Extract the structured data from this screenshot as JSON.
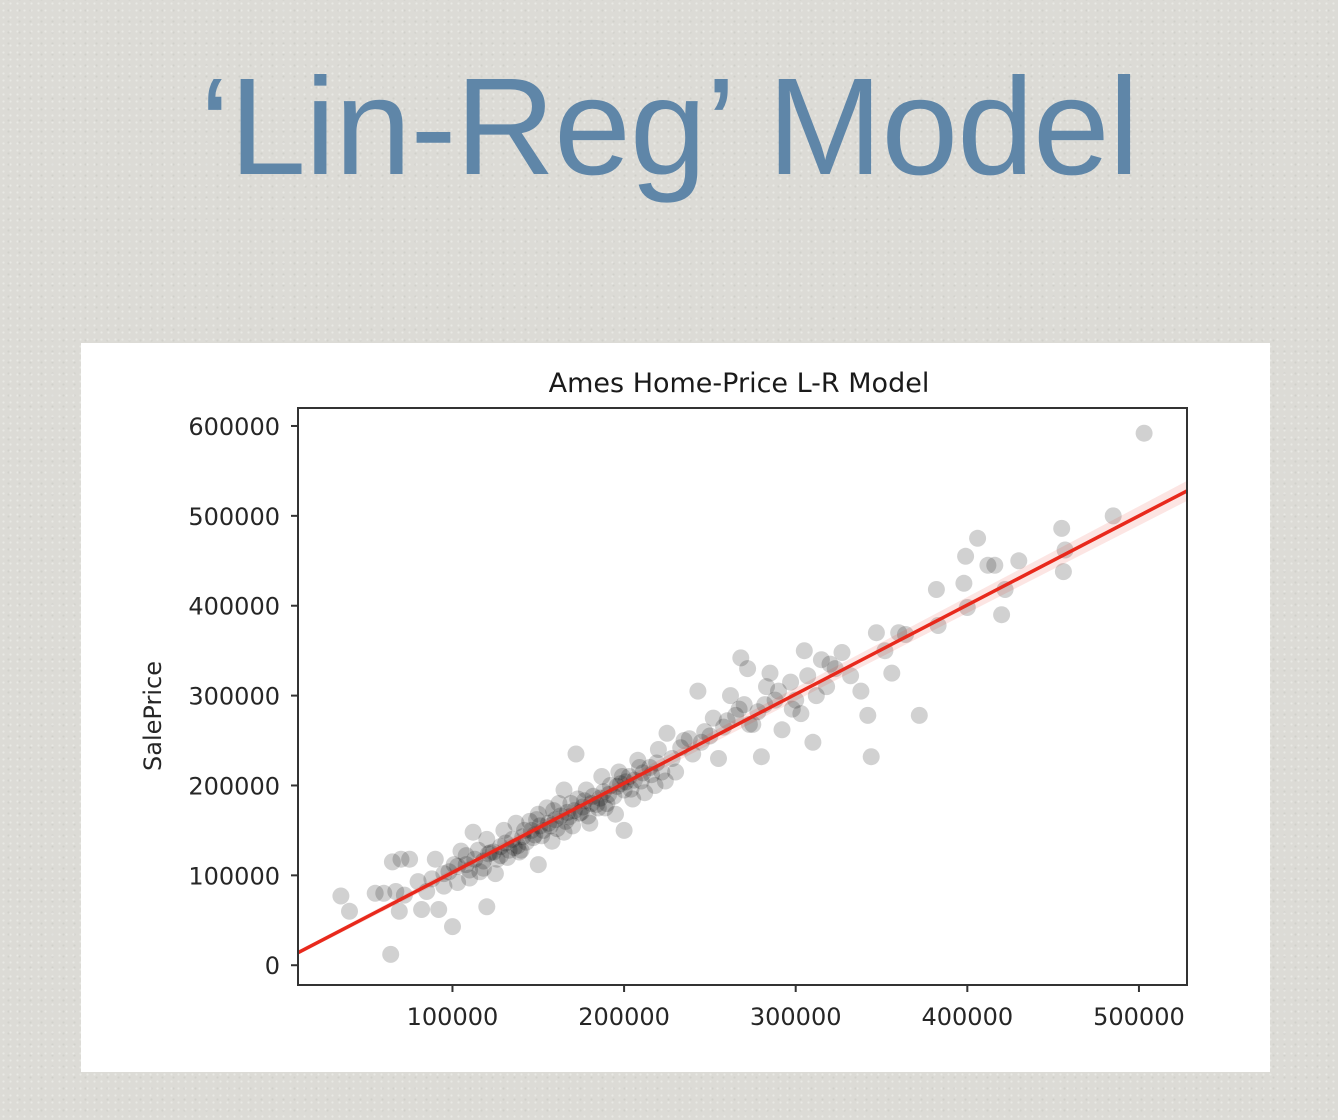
{
  "slide": {
    "title": "‘Lin-Reg’ Model"
  },
  "chart_data": {
    "type": "scatter",
    "title": "Ames Home-Price L-R Model",
    "xlabel": "",
    "ylabel": "SalePrice",
    "xlim": [
      10000,
      528000
    ],
    "ylim": [
      -22000,
      620000
    ],
    "xticks": [
      100000,
      200000,
      300000,
      400000,
      500000
    ],
    "yticks": [
      0,
      100000,
      200000,
      300000,
      400000,
      500000,
      600000
    ],
    "xtick_labels": [
      "100000",
      "200000",
      "300000",
      "400000",
      "500000"
    ],
    "ytick_labels": [
      "0",
      "100000",
      "200000",
      "300000",
      "400000",
      "500000",
      "600000"
    ],
    "grid": false,
    "point_color": "#000000",
    "point_alpha": 0.18,
    "points": [
      [
        35000,
        77000
      ],
      [
        40000,
        60000
      ],
      [
        55000,
        80000
      ],
      [
        60000,
        80000
      ],
      [
        64000,
        12000
      ],
      [
        65000,
        115000
      ],
      [
        67000,
        82000
      ],
      [
        69000,
        60000
      ],
      [
        70000,
        118000
      ],
      [
        72000,
        78000
      ],
      [
        75000,
        118000
      ],
      [
        80000,
        93000
      ],
      [
        82000,
        62000
      ],
      [
        85000,
        82000
      ],
      [
        88000,
        96000
      ],
      [
        90000,
        118000
      ],
      [
        92000,
        62000
      ],
      [
        95000,
        102000
      ],
      [
        100000,
        43000
      ],
      [
        101000,
        112000
      ],
      [
        103000,
        92000
      ],
      [
        105000,
        127000
      ],
      [
        108000,
        112000
      ],
      [
        110000,
        97000
      ],
      [
        112000,
        148000
      ],
      [
        115000,
        128000
      ],
      [
        118000,
        108000
      ],
      [
        120000,
        65000
      ],
      [
        120000,
        140000
      ],
      [
        122000,
        125000
      ],
      [
        125000,
        102000
      ],
      [
        128000,
        132000
      ],
      [
        130000,
        150000
      ],
      [
        132000,
        120000
      ],
      [
        135000,
        140000
      ],
      [
        137000,
        158000
      ],
      [
        140000,
        128000
      ],
      [
        142000,
        150000
      ],
      [
        145000,
        160000
      ],
      [
        147000,
        142000
      ],
      [
        150000,
        112000
      ],
      [
        150000,
        168000
      ],
      [
        153000,
        150000
      ],
      [
        155000,
        175000
      ],
      [
        158000,
        138000
      ],
      [
        160000,
        162000
      ],
      [
        162000,
        180000
      ],
      [
        165000,
        148000
      ],
      [
        165000,
        195000
      ],
      [
        168000,
        165000
      ],
      [
        170000,
        155000
      ],
      [
        172000,
        235000
      ],
      [
        173000,
        185000
      ],
      [
        175000,
        170000
      ],
      [
        178000,
        195000
      ],
      [
        180000,
        158000
      ],
      [
        182000,
        188000
      ],
      [
        185000,
        175000
      ],
      [
        187000,
        210000
      ],
      [
        190000,
        180000
      ],
      [
        192000,
        200000
      ],
      [
        195000,
        168000
      ],
      [
        197000,
        215000
      ],
      [
        200000,
        150000
      ],
      [
        200000,
        195000
      ],
      [
        203000,
        210000
      ],
      [
        205000,
        185000
      ],
      [
        208000,
        228000
      ],
      [
        210000,
        205000
      ],
      [
        212000,
        192000
      ],
      [
        215000,
        220000
      ],
      [
        218000,
        200000
      ],
      [
        220000,
        240000
      ],
      [
        222000,
        215000
      ],
      [
        225000,
        258000
      ],
      [
        228000,
        230000
      ],
      [
        230000,
        215000
      ],
      [
        235000,
        250000
      ],
      [
        240000,
        235000
      ],
      [
        243000,
        305000
      ],
      [
        247000,
        260000
      ],
      [
        252000,
        275000
      ],
      [
        255000,
        230000
      ],
      [
        258000,
        265000
      ],
      [
        262000,
        300000
      ],
      [
        265000,
        278000
      ],
      [
        268000,
        342000
      ],
      [
        270000,
        290000
      ],
      [
        272000,
        330000
      ],
      [
        275000,
        268000
      ],
      [
        278000,
        282000
      ],
      [
        280000,
        232000
      ],
      [
        283000,
        310000
      ],
      [
        285000,
        325000
      ],
      [
        288000,
        295000
      ],
      [
        292000,
        262000
      ],
      [
        297000,
        315000
      ],
      [
        300000,
        295000
      ],
      [
        303000,
        280000
      ],
      [
        305000,
        350000
      ],
      [
        307000,
        322000
      ],
      [
        310000,
        248000
      ],
      [
        312000,
        300000
      ],
      [
        315000,
        340000
      ],
      [
        318000,
        310000
      ],
      [
        320000,
        335000
      ],
      [
        323000,
        330000
      ],
      [
        327000,
        348000
      ],
      [
        332000,
        322000
      ],
      [
        338000,
        305000
      ],
      [
        342000,
        278000
      ],
      [
        344000,
        232000
      ],
      [
        347000,
        370000
      ],
      [
        352000,
        350000
      ],
      [
        356000,
        325000
      ],
      [
        360000,
        370000
      ],
      [
        364000,
        368000
      ],
      [
        372000,
        278000
      ],
      [
        382000,
        418000
      ],
      [
        383000,
        378000
      ],
      [
        398000,
        425000
      ],
      [
        399000,
        455000
      ],
      [
        400000,
        398000
      ],
      [
        406000,
        475000
      ],
      [
        412000,
        445000
      ],
      [
        416000,
        445000
      ],
      [
        420000,
        390000
      ],
      [
        422000,
        418000
      ],
      [
        430000,
        450000
      ],
      [
        455000,
        486000
      ],
      [
        456000,
        438000
      ],
      [
        457000,
        462000
      ],
      [
        485000,
        500000
      ],
      [
        503000,
        592000
      ],
      [
        118000,
        116000
      ],
      [
        126000,
        118000
      ],
      [
        133000,
        128000
      ],
      [
        138000,
        133000
      ],
      [
        143000,
        137000
      ],
      [
        148000,
        145000
      ],
      [
        152000,
        144000
      ],
      [
        157000,
        155000
      ],
      [
        161000,
        152000
      ],
      [
        166000,
        160000
      ],
      [
        171000,
        172000
      ],
      [
        176000,
        176000
      ],
      [
        181000,
        180000
      ],
      [
        186000,
        186000
      ],
      [
        191000,
        190000
      ],
      [
        196000,
        199000
      ],
      [
        201000,
        204000
      ],
      [
        206000,
        206000
      ],
      [
        211000,
        214000
      ],
      [
        216000,
        212000
      ],
      [
        108000,
        122000
      ],
      [
        113000,
        118000
      ],
      [
        124000,
        126000
      ],
      [
        136000,
        131000
      ],
      [
        146000,
        150000
      ],
      [
        156000,
        158000
      ],
      [
        167000,
        170000
      ],
      [
        177000,
        183000
      ],
      [
        188000,
        193000
      ],
      [
        198000,
        202000
      ],
      [
        110000,
        106000
      ],
      [
        121000,
        124000
      ],
      [
        131000,
        136000
      ],
      [
        141000,
        143000
      ],
      [
        151000,
        155000
      ],
      [
        163000,
        166000
      ],
      [
        174000,
        169000
      ],
      [
        184000,
        179000
      ],
      [
        194000,
        188000
      ],
      [
        204000,
        196000
      ],
      [
        95000,
        88000
      ],
      [
        98000,
        104000
      ],
      [
        103000,
        110000
      ],
      [
        116000,
        104000
      ],
      [
        128000,
        122000
      ],
      [
        139000,
        126000
      ],
      [
        149000,
        162000
      ],
      [
        159000,
        172000
      ],
      [
        169000,
        180000
      ],
      [
        179000,
        166000
      ],
      [
        189000,
        175000
      ],
      [
        199000,
        210000
      ],
      [
        209000,
        220000
      ],
      [
        219000,
        225000
      ],
      [
        224000,
        205000
      ],
      [
        233000,
        242000
      ],
      [
        238000,
        252000
      ],
      [
        245000,
        248000
      ],
      [
        250000,
        255000
      ],
      [
        260000,
        272000
      ],
      [
        267000,
        285000
      ],
      [
        273000,
        268000
      ],
      [
        282000,
        290000
      ],
      [
        290000,
        305000
      ],
      [
        298000,
        285000
      ]
    ],
    "regression_line": {
      "color": "#e8291c",
      "intercept": 4000,
      "slope": 0.992
    }
  }
}
